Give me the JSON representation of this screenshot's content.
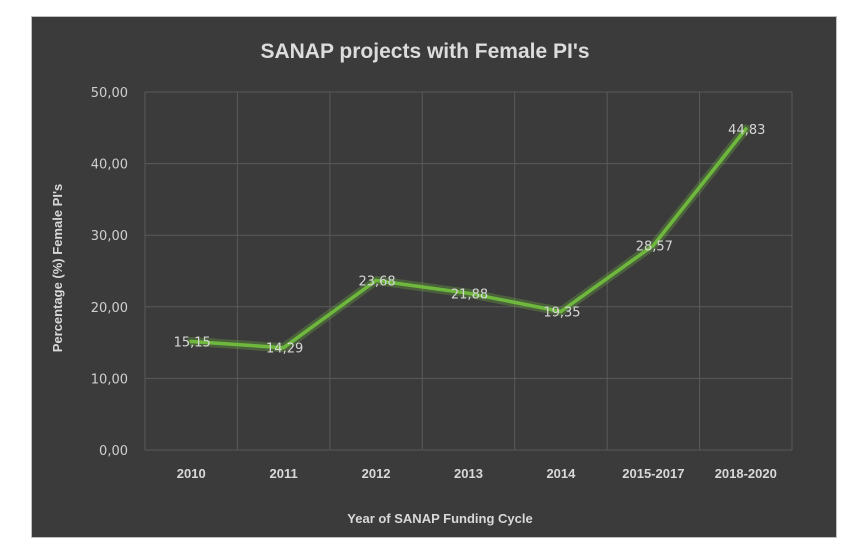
{
  "chart_data": {
    "type": "line",
    "title": "SANAP projects with Female PI's",
    "xlabel": "Year of SANAP Funding Cycle",
    "ylabel": "Percentage (%) Female PI's",
    "categories": [
      "2010",
      "2011",
      "2012",
      "2013",
      "2014",
      "2015-2017",
      "2018-2020"
    ],
    "series": [
      {
        "values": [
          15.15,
          14.29,
          23.68,
          21.88,
          19.35,
          28.57,
          44.83
        ],
        "labels": [
          "15,15",
          "14,29",
          "23,68",
          "21,88",
          "19,35",
          "28,57",
          "44,83"
        ],
        "color": "#6fb83e"
      }
    ],
    "ylim": [
      0,
      50
    ],
    "yticks": [
      0,
      10,
      20,
      30,
      40,
      50
    ],
    "ytick_labels": [
      "0,00",
      "10,00",
      "20,00",
      "30,00",
      "40,00",
      "50,00"
    ],
    "grid": true,
    "legend": "none"
  }
}
